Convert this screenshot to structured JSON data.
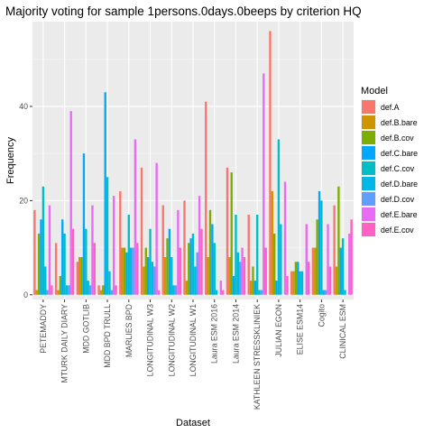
{
  "chart_data": {
    "type": "bar",
    "title": "Majority voting for sample 1persons.0days.0beeps by criterion HQ",
    "xlabel": "Dataset",
    "ylabel": "Frequency",
    "ylim": [
      -1,
      58
    ],
    "yticks": [
      0,
      20,
      40
    ],
    "grid": true,
    "legend_position": "right",
    "legend_title": "Model",
    "categories": [
      "PETEMADDY",
      "MTURK DAILY DIARY",
      "MDD GOTLIB",
      "MDD BPD TRULL",
      "MARLIES BPD",
      "LONGITUDINAL W3",
      "LONGITUDINAL W2",
      "LONGITUDINAL W1",
      "Laura ESM 2016",
      "Laura ESM 2014",
      "KATHLEEN STRESSKLINIEK",
      "JULIAN EGON",
      "ELISE ESM14",
      "Cogito",
      "CLINICAL ESM"
    ],
    "series": [
      {
        "name": "def.A",
        "color": "#F8766D",
        "values": [
          18,
          11,
          7,
          2,
          22,
          27,
          19,
          20,
          41,
          27,
          17,
          56,
          5,
          10,
          19
        ]
      },
      {
        "name": "def.B.bare",
        "color": "#CD9600",
        "values": [
          1,
          1,
          8,
          1,
          10,
          6,
          8,
          3,
          8,
          8,
          3,
          22,
          5,
          10,
          6
        ]
      },
      {
        "name": "def.B.cov",
        "color": "#7CAE00",
        "values": [
          13,
          4,
          8,
          2,
          10,
          10,
          12,
          11,
          18,
          26,
          6,
          13,
          7,
          16,
          23
        ]
      },
      {
        "name": "def.C.bare",
        "color": "#00A9FF",
        "values": [
          16,
          16,
          30,
          43,
          9,
          8,
          14,
          12,
          15,
          4,
          3,
          3,
          7,
          22,
          10
        ]
      },
      {
        "name": "def.C.cov",
        "color": "#00BFC4",
        "values": [
          23,
          13,
          14,
          25,
          17,
          14,
          8,
          13,
          11,
          17,
          17,
          33,
          5,
          20,
          12
        ]
      },
      {
        "name": "def.D.bare",
        "color": "#00B8E7",
        "values": [
          6,
          2,
          3,
          5,
          10,
          7,
          2,
          6,
          1,
          9,
          1,
          15,
          5,
          1,
          1
        ]
      },
      {
        "name": "def.D.cov",
        "color": "#619CFF",
        "values": [
          1,
          2,
          2,
          1,
          10,
          6,
          2,
          9,
          0,
          7,
          1,
          0,
          0,
          1,
          0
        ]
      },
      {
        "name": "def.E.bare",
        "color": "#E76BF3",
        "values": [
          19,
          39,
          19,
          21,
          33,
          28,
          18,
          21,
          3,
          10,
          47,
          24,
          15,
          15,
          13
        ]
      },
      {
        "name": "def.E.cov",
        "color": "#FF61C3",
        "values": [
          2,
          14,
          11,
          2,
          11,
          1,
          10,
          14,
          1,
          8,
          10,
          4,
          7,
          6,
          16
        ]
      }
    ]
  }
}
